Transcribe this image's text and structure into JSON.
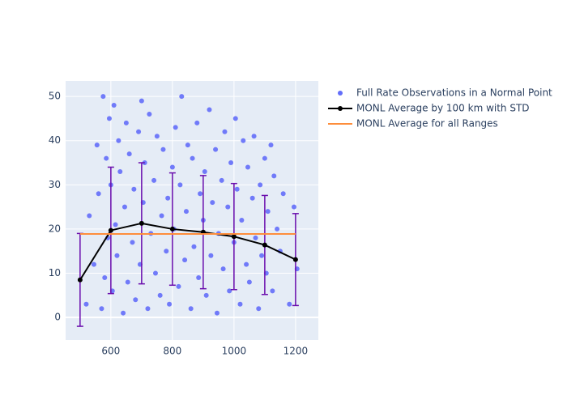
{
  "chart_data": {
    "type": "scatter-line",
    "xlim": [
      453,
      1274
    ],
    "ylim": [
      -5.1,
      53.5
    ],
    "xticks": [
      600,
      800,
      1000,
      1200
    ],
    "yticks": [
      0,
      10,
      20,
      30,
      40,
      50
    ],
    "grid": true,
    "legend": "top-right",
    "series": [
      {
        "name": "Full Rate Observations in a Normal Point",
        "type": "scatter",
        "color": "#636efa",
        "x": [
          520,
          530,
          545,
          555,
          560,
          570,
          575,
          580,
          585,
          590,
          595,
          600,
          605,
          610,
          615,
          620,
          625,
          630,
          640,
          645,
          650,
          655,
          660,
          670,
          675,
          680,
          690,
          695,
          700,
          705,
          710,
          720,
          725,
          730,
          740,
          745,
          750,
          760,
          765,
          770,
          780,
          785,
          790,
          800,
          805,
          810,
          820,
          825,
          830,
          840,
          845,
          850,
          860,
          865,
          870,
          880,
          885,
          890,
          900,
          905,
          910,
          920,
          925,
          930,
          940,
          945,
          950,
          960,
          965,
          970,
          980,
          985,
          990,
          1000,
          1005,
          1010,
          1020,
          1025,
          1030,
          1040,
          1045,
          1050,
          1060,
          1065,
          1070,
          1080,
          1085,
          1090,
          1100,
          1105,
          1110,
          1120,
          1125,
          1130,
          1140,
          1150,
          1160,
          1180,
          1195,
          1205
        ],
        "values": [
          3,
          23,
          12,
          39,
          28,
          2,
          50,
          9,
          36,
          18,
          45,
          30,
          6,
          48,
          21,
          14,
          40,
          33,
          1,
          25,
          44,
          8,
          37,
          17,
          29,
          4,
          42,
          12,
          49,
          26,
          35,
          2,
          46,
          19,
          31,
          10,
          41,
          5,
          23,
          38,
          15,
          27,
          3,
          34,
          20,
          43,
          7,
          30,
          50,
          13,
          24,
          39,
          2,
          36,
          16,
          44,
          9,
          28,
          22,
          33,
          5,
          47,
          14,
          26,
          38,
          1,
          19,
          31,
          11,
          42,
          25,
          6,
          35,
          17,
          45,
          29,
          3,
          22,
          40,
          12,
          34,
          8,
          27,
          41,
          18,
          2,
          30,
          14,
          36,
          10,
          24,
          39,
          6,
          32,
          20,
          15,
          28,
          3,
          25,
          11
        ]
      },
      {
        "name": "MONL Average by 100 km with STD",
        "type": "line",
        "color": "#000000",
        "x": [
          500,
          600,
          700,
          800,
          900,
          1000,
          1100,
          1200
        ],
        "values": [
          8.5,
          19.7,
          21.3,
          20.0,
          19.3,
          18.3,
          16.4,
          13.1
        ],
        "error": [
          10.5,
          14.3,
          13.7,
          12.7,
          12.8,
          12.0,
          11.2,
          10.4
        ],
        "error_color": "#6a0dad"
      },
      {
        "name": "MONL Average for all Ranges",
        "type": "line",
        "color": "#fd8d3c",
        "x": [
          500,
          1200
        ],
        "values": [
          18.9,
          18.9
        ]
      }
    ]
  }
}
